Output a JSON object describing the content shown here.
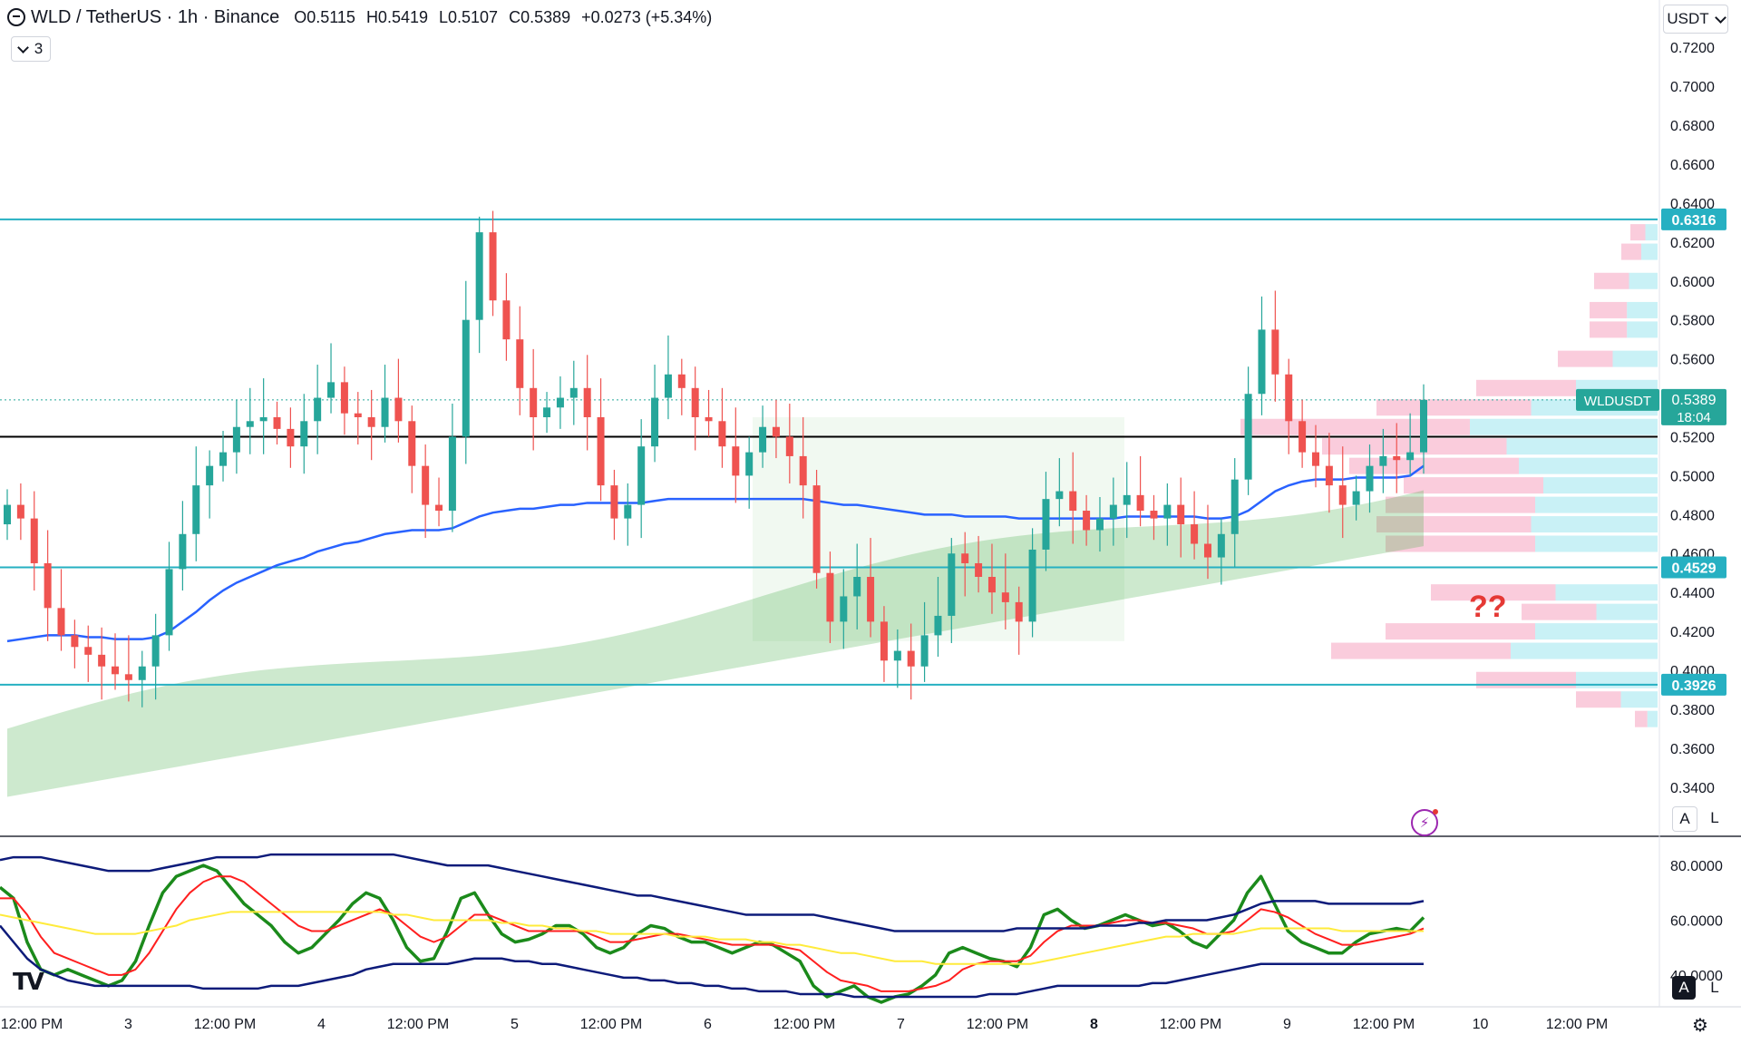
{
  "header": {
    "symbol": "WLD / TetherUS · 1h · Binance",
    "open": "O0.5115",
    "high": "H0.5419",
    "low": "L0.5107",
    "close": "C0.5389",
    "change": "+0.0273 (+5.34%)"
  },
  "indicator_count": "3",
  "currency": "USDT",
  "price_tag": {
    "name": "WLDUSDT",
    "price": "0.5389",
    "countdown": "18:04",
    "color": "#26a69a"
  },
  "level_tags": [
    "0.6316",
    "0.4529",
    "0.3926"
  ],
  "annotation": "??",
  "buttons": {
    "auto": "A",
    "log": "L"
  },
  "colors": {
    "up": "#26a69a",
    "down": "#ef5350",
    "ema": "#2962ff",
    "level": "#26b0c2",
    "ichimoku": "#4caf50",
    "rsi_fast": "#1b8a1b",
    "rsi_signal": "#ff1f1f",
    "rsi_mid": "#ffeb3b",
    "bands": "#0d1b7a"
  },
  "logo": "TV",
  "chart_data": [
    {
      "type": "candlestick",
      "price_axis_ticks": [
        "0.7200",
        "0.7000",
        "0.6800",
        "0.6600",
        "0.6400",
        "0.6200",
        "0.6000",
        "0.5800",
        "0.5600",
        "0.5200",
        "0.5000",
        "0.4800",
        "0.4600",
        "0.4400",
        "0.4200",
        "0.4000",
        "0.3800",
        "0.3600",
        "0.3400"
      ],
      "time_axis_ticks": [
        "12:00 PM",
        "3",
        "12:00 PM",
        "4",
        "12:00 PM",
        "5",
        "12:00 PM",
        "6",
        "12:00 PM",
        "7",
        "12:00 PM",
        "8",
        "12:00 PM",
        "9",
        "12:00 PM",
        "10",
        "12:00 PM"
      ],
      "ylim": [
        0.325,
        0.735
      ],
      "horizontal_levels": [
        0.6316,
        0.52,
        0.4529,
        0.3926
      ],
      "current_price": 0.5389,
      "closes": [
        0.485,
        0.478,
        0.455,
        0.432,
        0.418,
        0.412,
        0.408,
        0.402,
        0.398,
        0.395,
        0.402,
        0.418,
        0.452,
        0.47,
        0.495,
        0.505,
        0.512,
        0.525,
        0.528,
        0.53,
        0.524,
        0.515,
        0.528,
        0.54,
        0.548,
        0.532,
        0.53,
        0.525,
        0.54,
        0.528,
        0.505,
        0.485,
        0.482,
        0.52,
        0.58,
        0.625,
        0.59,
        0.57,
        0.545,
        0.53,
        0.535,
        0.54,
        0.545,
        0.53,
        0.495,
        0.478,
        0.485,
        0.515,
        0.54,
        0.552,
        0.545,
        0.53,
        0.528,
        0.515,
        0.5,
        0.512,
        0.525,
        0.52,
        0.51,
        0.495,
        0.45,
        0.425,
        0.438,
        0.448,
        0.425,
        0.405,
        0.41,
        0.402,
        0.418,
        0.428,
        0.46,
        0.455,
        0.448,
        0.44,
        0.435,
        0.425,
        0.462,
        0.488,
        0.492,
        0.482,
        0.472,
        0.478,
        0.485,
        0.49,
        0.482,
        0.478,
        0.485,
        0.475,
        0.465,
        0.458,
        0.47,
        0.498,
        0.542,
        0.575,
        0.552,
        0.528,
        0.512,
        0.505,
        0.495,
        0.485,
        0.492,
        0.505,
        0.51,
        0.508,
        0.512,
        0.5389
      ],
      "ema_200": [
        0.415,
        0.416,
        0.417,
        0.418,
        0.418,
        0.418,
        0.417,
        0.417,
        0.416,
        0.416,
        0.416,
        0.417,
        0.42,
        0.425,
        0.43,
        0.436,
        0.441,
        0.445,
        0.448,
        0.451,
        0.454,
        0.456,
        0.458,
        0.461,
        0.463,
        0.465,
        0.466,
        0.468,
        0.47,
        0.471,
        0.472,
        0.472,
        0.472,
        0.473,
        0.476,
        0.479,
        0.481,
        0.482,
        0.483,
        0.483,
        0.484,
        0.485,
        0.485,
        0.486,
        0.486,
        0.486,
        0.486,
        0.486,
        0.487,
        0.488,
        0.488,
        0.488,
        0.488,
        0.488,
        0.488,
        0.488,
        0.488,
        0.488,
        0.488,
        0.488,
        0.487,
        0.486,
        0.485,
        0.485,
        0.484,
        0.483,
        0.482,
        0.481,
        0.48,
        0.48,
        0.48,
        0.479,
        0.479,
        0.479,
        0.479,
        0.478,
        0.478,
        0.478,
        0.478,
        0.478,
        0.478,
        0.478,
        0.478,
        0.479,
        0.479,
        0.479,
        0.479,
        0.479,
        0.479,
        0.478,
        0.478,
        0.479,
        0.482,
        0.487,
        0.492,
        0.495,
        0.497,
        0.498,
        0.498,
        0.498,
        0.499,
        0.499,
        0.499,
        0.499,
        0.5,
        0.505
      ]
    },
    {
      "type": "line",
      "yaxis_ticks": [
        "80.0000",
        "60.0000",
        "40.0000"
      ],
      "ylim": [
        30,
        88
      ],
      "series": [
        {
          "values": [
            72,
            68,
            52,
            42,
            40,
            42,
            40,
            38,
            36,
            38,
            45,
            58,
            70,
            76,
            78,
            80,
            78,
            72,
            66,
            62,
            58,
            52,
            48,
            50,
            55,
            60,
            66,
            70,
            68,
            60,
            50,
            45,
            46,
            56,
            68,
            70,
            62,
            55,
            52,
            53,
            55,
            58,
            58,
            55,
            50,
            48,
            50,
            55,
            58,
            57,
            54,
            52,
            52,
            50,
            48,
            50,
            52,
            51,
            48,
            45,
            36,
            32,
            34,
            36,
            32,
            30,
            32,
            33,
            36,
            40,
            48,
            50,
            48,
            46,
            45,
            43,
            50,
            62,
            64,
            60,
            57,
            58,
            60,
            62,
            60,
            58,
            59,
            56,
            52,
            50,
            55,
            60,
            70,
            76,
            66,
            56,
            52,
            50,
            48,
            48,
            52,
            55,
            56,
            57,
            56,
            61
          ]
        },
        {
          "values": [
            68,
            68,
            62,
            54,
            48,
            46,
            44,
            42,
            40,
            40,
            42,
            48,
            56,
            64,
            70,
            74,
            76,
            76,
            74,
            70,
            66,
            62,
            58,
            56,
            56,
            58,
            60,
            62,
            64,
            62,
            58,
            54,
            52,
            54,
            58,
            62,
            62,
            60,
            58,
            56,
            56,
            56,
            56,
            56,
            54,
            52,
            52,
            53,
            54,
            55,
            55,
            54,
            53,
            52,
            51,
            51,
            51,
            51,
            50,
            49,
            45,
            41,
            38,
            37,
            36,
            34,
            34,
            34,
            35,
            36,
            38,
            42,
            44,
            45,
            45,
            45,
            47,
            52,
            56,
            58,
            58,
            58,
            59,
            60,
            60,
            59,
            59,
            58,
            57,
            55,
            55,
            56,
            60,
            64,
            63,
            61,
            58,
            55,
            53,
            51,
            51,
            52,
            53,
            54,
            55,
            57
          ]
        },
        {
          "values": [
            62,
            61,
            60,
            59,
            58,
            57,
            56,
            55,
            55,
            55,
            55,
            56,
            57,
            58,
            60,
            61,
            62,
            63,
            63,
            63,
            63,
            63,
            63,
            63,
            63,
            63,
            63,
            63,
            63,
            62,
            62,
            61,
            60,
            60,
            60,
            60,
            60,
            59,
            59,
            58,
            58,
            57,
            57,
            56,
            56,
            55,
            55,
            55,
            55,
            55,
            54,
            54,
            54,
            53,
            53,
            53,
            52,
            52,
            51,
            51,
            50,
            49,
            48,
            48,
            47,
            46,
            45,
            45,
            45,
            44,
            44,
            44,
            44,
            44,
            44,
            44,
            44,
            45,
            46,
            47,
            48,
            49,
            50,
            51,
            52,
            53,
            54,
            54,
            55,
            55,
            55,
            55,
            56,
            57,
            57,
            57,
            57,
            57,
            57,
            56,
            56,
            56,
            56,
            56,
            56,
            56
          ]
        },
        {
          "values": [
            82,
            83,
            83,
            83,
            82,
            81,
            80,
            79,
            78,
            78,
            78,
            78,
            79,
            80,
            81,
            82,
            83,
            83,
            83,
            83,
            84,
            84,
            84,
            84,
            84,
            84,
            84,
            84,
            84,
            84,
            83,
            82,
            81,
            80,
            80,
            80,
            80,
            79,
            78,
            77,
            76,
            75,
            74,
            73,
            72,
            71,
            70,
            69,
            69,
            68,
            67,
            66,
            65,
            64,
            63,
            62,
            62,
            62,
            62,
            62,
            62,
            61,
            60,
            59,
            58,
            57,
            56,
            56,
            56,
            56,
            56,
            56,
            56,
            56,
            56,
            57,
            57,
            57,
            57,
            57,
            57,
            58,
            58,
            58,
            59,
            59,
            60,
            60,
            60,
            60,
            61,
            62,
            64,
            66,
            67,
            67,
            67,
            67,
            66,
            66,
            66,
            66,
            66,
            66,
            66,
            67
          ]
        },
        {
          "values": [
            58,
            52,
            46,
            42,
            40,
            38,
            37,
            36,
            36,
            36,
            36,
            36,
            36,
            36,
            36,
            35,
            35,
            35,
            35,
            35,
            36,
            36,
            36,
            37,
            38,
            39,
            40,
            42,
            43,
            44,
            44,
            44,
            44,
            44,
            45,
            46,
            46,
            46,
            45,
            45,
            44,
            44,
            43,
            42,
            41,
            40,
            39,
            39,
            38,
            38,
            37,
            37,
            36,
            36,
            35,
            35,
            34,
            34,
            34,
            33,
            33,
            33,
            33,
            32,
            32,
            32,
            32,
            32,
            32,
            32,
            32,
            32,
            32,
            33,
            33,
            33,
            34,
            35,
            36,
            36,
            36,
            36,
            36,
            36,
            36,
            37,
            37,
            38,
            39,
            40,
            41,
            42,
            43,
            44,
            44,
            44,
            44,
            44,
            44,
            44,
            44,
            44,
            44,
            44,
            44,
            44
          ]
        }
      ]
    }
  ]
}
